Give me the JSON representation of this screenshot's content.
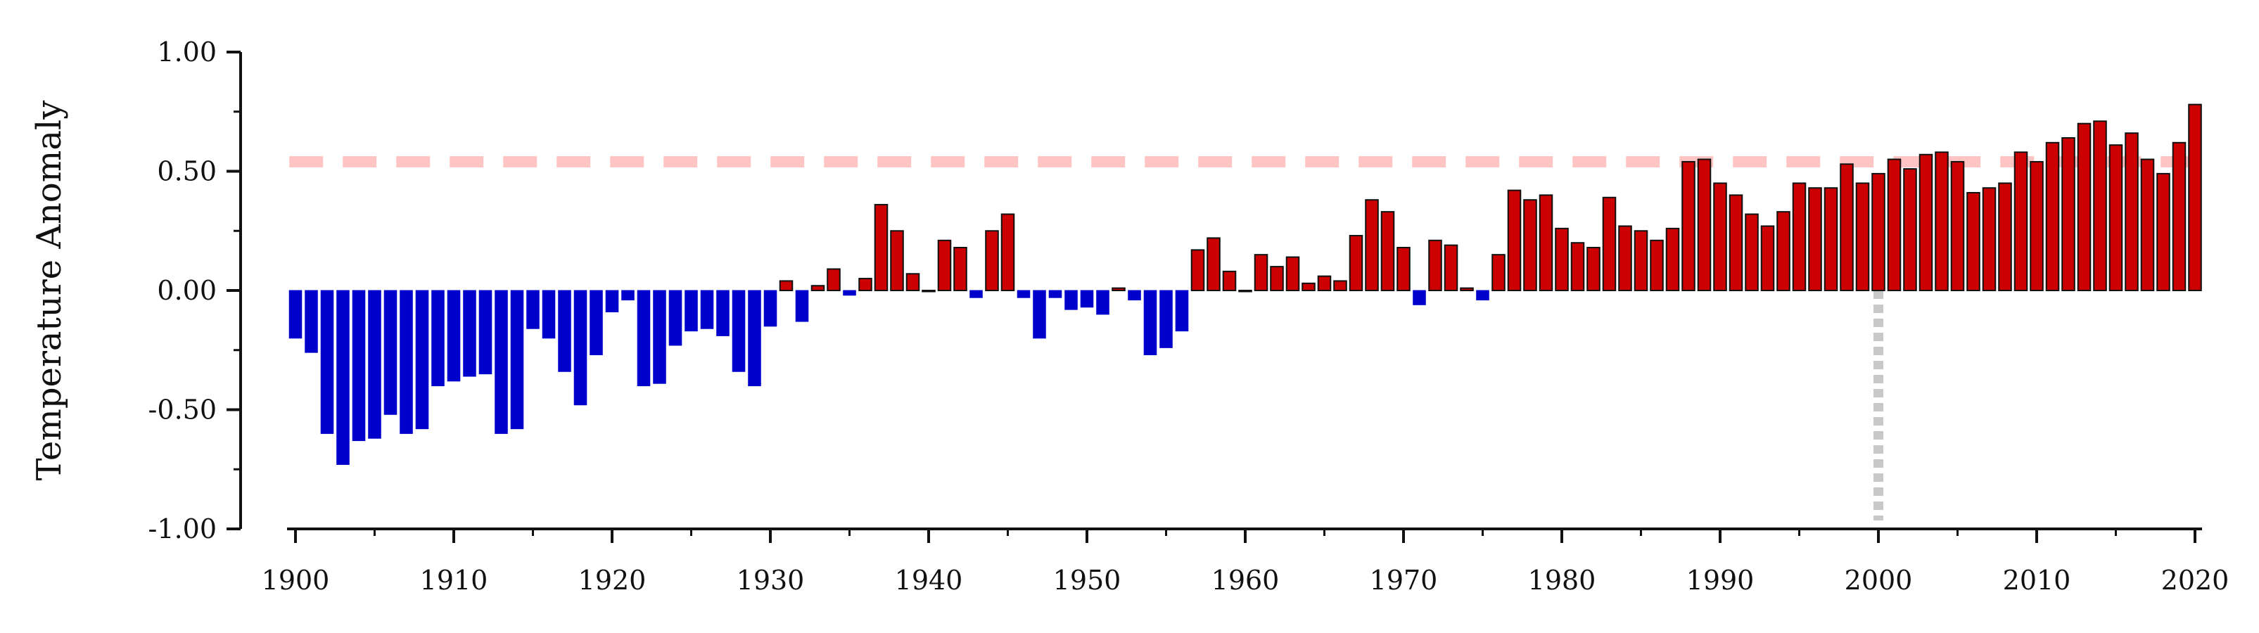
{
  "chart_data": {
    "type": "bar",
    "title": "",
    "xlabel": "",
    "ylabel": "Temperature Anomaly",
    "xlim": [
      1900,
      2020
    ],
    "ylim": [
      -1.0,
      1.0
    ],
    "x_ticks": [
      "1900",
      "1910",
      "1920",
      "1930",
      "1940",
      "1950",
      "1960",
      "1970",
      "1980",
      "1990",
      "2000",
      "2010",
      "2020"
    ],
    "y_ticks": [
      "1.00",
      "0.50",
      "0.00",
      "-0.50",
      "-1.00"
    ],
    "grid": false,
    "legend": "none",
    "colors": {
      "positive": "#cc0000",
      "negative": "#0000cc",
      "positive_edge": "#111111",
      "reference_line": "#ffc4c4",
      "vertical_marker": "#c8c8c8",
      "axis": "#111111"
    },
    "reference_line_y": 0.54,
    "vertical_marker_x": 2000,
    "years": [
      1900,
      1901,
      1902,
      1903,
      1904,
      1905,
      1906,
      1907,
      1908,
      1909,
      1910,
      1911,
      1912,
      1913,
      1914,
      1915,
      1916,
      1917,
      1918,
      1919,
      1920,
      1921,
      1922,
      1923,
      1924,
      1925,
      1926,
      1927,
      1928,
      1929,
      1930,
      1931,
      1932,
      1933,
      1934,
      1935,
      1936,
      1937,
      1938,
      1939,
      1940,
      1941,
      1942,
      1943,
      1944,
      1945,
      1946,
      1947,
      1948,
      1949,
      1950,
      1951,
      1952,
      1953,
      1954,
      1955,
      1956,
      1957,
      1958,
      1959,
      1960,
      1961,
      1962,
      1963,
      1964,
      1965,
      1966,
      1967,
      1968,
      1969,
      1970,
      1971,
      1972,
      1973,
      1974,
      1975,
      1976,
      1977,
      1978,
      1979,
      1980,
      1981,
      1982,
      1983,
      1984,
      1985,
      1986,
      1987,
      1988,
      1989,
      1990,
      1991,
      1992,
      1993,
      1994,
      1995,
      1996,
      1997,
      1998,
      1999,
      2000,
      2001,
      2002,
      2003,
      2004,
      2005,
      2006,
      2007,
      2008,
      2009,
      2010,
      2011,
      2012,
      2013,
      2014,
      2015,
      2016,
      2017,
      2018,
      2019,
      2020
    ],
    "values": [
      -0.2,
      -0.26,
      -0.6,
      -0.73,
      -0.63,
      -0.62,
      -0.52,
      -0.6,
      -0.58,
      -0.4,
      -0.38,
      -0.36,
      -0.35,
      -0.6,
      -0.58,
      -0.16,
      -0.2,
      -0.34,
      -0.48,
      -0.27,
      -0.09,
      -0.04,
      -0.4,
      -0.39,
      -0.23,
      -0.17,
      -0.16,
      -0.19,
      -0.34,
      -0.4,
      -0.15,
      0.04,
      -0.13,
      0.02,
      0.09,
      -0.02,
      0.05,
      0.36,
      0.25,
      0.07,
      0.0,
      0.21,
      0.18,
      -0.03,
      0.25,
      0.32,
      -0.03,
      -0.2,
      -0.03,
      -0.08,
      -0.07,
      -0.1,
      0.01,
      -0.04,
      -0.27,
      -0.24,
      -0.17,
      0.17,
      0.22,
      0.08,
      0.0,
      0.15,
      0.1,
      0.14,
      0.03,
      0.06,
      0.04,
      0.23,
      0.38,
      0.33,
      0.18,
      -0.06,
      0.21,
      0.19,
      0.01,
      -0.04,
      0.15,
      0.42,
      0.38,
      0.4,
      0.26,
      0.2,
      0.18,
      0.39,
      0.27,
      0.25,
      0.21,
      0.26,
      0.54,
      0.55,
      0.45,
      0.4,
      0.32,
      0.27,
      0.33,
      0.45,
      0.43,
      0.43,
      0.53,
      0.45,
      0.49,
      0.55,
      0.51,
      0.57,
      0.58,
      0.54,
      0.41,
      0.43,
      0.45,
      0.58,
      0.54,
      0.62,
      0.64,
      0.7,
      0.71,
      0.61,
      0.66,
      0.55,
      0.49,
      0.62,
      0.78
    ]
  }
}
